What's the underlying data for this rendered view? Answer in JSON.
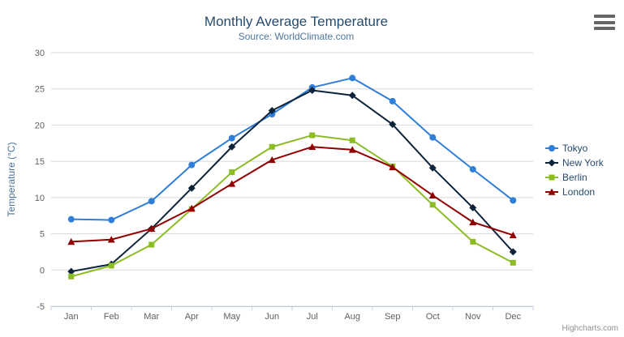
{
  "header": {
    "title": "Monthly Average Temperature",
    "subtitle": "Source: WorldClimate.com"
  },
  "export_menu": {
    "icon": "hamburger-icon"
  },
  "credits": {
    "label": "Highcharts.com"
  },
  "axes": {
    "y_title": "Temperature (°C)",
    "y_tick_labels": [
      "-5",
      "0",
      "5",
      "10",
      "15",
      "20",
      "25",
      "30"
    ],
    "x_tick_labels": [
      "Jan",
      "Feb",
      "Mar",
      "Apr",
      "May",
      "Jun",
      "Jul",
      "Aug",
      "Sep",
      "Oct",
      "Nov",
      "Dec"
    ]
  },
  "colors": {
    "title": "#274b6d",
    "subtitle": "#4d759e",
    "axis_title": "#4d759e",
    "tick_label": "#606060",
    "gridline": "#d8d8d8",
    "axis_line": "#c0d0e0",
    "legend_text": "#274b6d",
    "credits_text": "#909090"
  },
  "chart_data": {
    "type": "line",
    "title": "Monthly Average Temperature",
    "subtitle": "Source: WorldClimate.com",
    "xlabel": "",
    "ylabel": "Temperature (°C)",
    "categories": [
      "Jan",
      "Feb",
      "Mar",
      "Apr",
      "May",
      "Jun",
      "Jul",
      "Aug",
      "Sep",
      "Oct",
      "Nov",
      "Dec"
    ],
    "ylim": [
      -5,
      30
    ],
    "yticks": [
      -5,
      0,
      5,
      10,
      15,
      20,
      25,
      30
    ],
    "grid": true,
    "legend_position": "right",
    "series": [
      {
        "name": "Tokyo",
        "color": "#2f7ed8",
        "marker": "circle",
        "values": [
          7.0,
          6.9,
          9.5,
          14.5,
          18.2,
          21.5,
          25.2,
          26.5,
          23.3,
          18.3,
          13.9,
          9.6
        ]
      },
      {
        "name": "New York",
        "color": "#0d233a",
        "marker": "diamond",
        "values": [
          -0.2,
          0.8,
          5.7,
          11.3,
          17.0,
          22.0,
          24.8,
          24.1,
          20.1,
          14.1,
          8.6,
          2.5
        ]
      },
      {
        "name": "Berlin",
        "color": "#8bbc21",
        "marker": "square",
        "values": [
          -0.9,
          0.6,
          3.5,
          8.4,
          13.5,
          17.0,
          18.6,
          17.9,
          14.3,
          9.0,
          3.9,
          1.0
        ]
      },
      {
        "name": "London",
        "color": "#910000",
        "marker": "triangle",
        "values": [
          3.9,
          4.2,
          5.7,
          8.5,
          11.9,
          15.2,
          17.0,
          16.6,
          14.2,
          10.3,
          6.6,
          4.8
        ]
      }
    ]
  }
}
